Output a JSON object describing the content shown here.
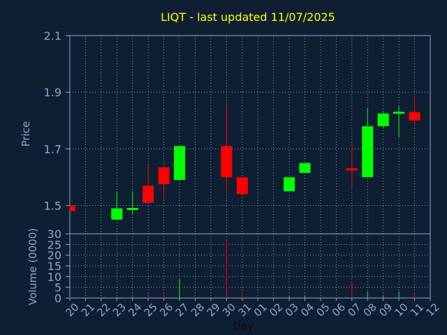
{
  "chart_data": [
    {
      "type": "candlestick",
      "title": "LIQT - last updated 11/07/2025",
      "ylabel": "Price",
      "ylim": [
        1.4,
        2.1
      ],
      "yticks": [
        1.5,
        1.7,
        1.9,
        2.1
      ],
      "ytick_labels": [
        "1.5",
        "1.7",
        "1.9",
        "2.1"
      ],
      "grid": true,
      "colors": {
        "up": "#00ff00",
        "down": "#ff0000",
        "background": "#0f1f33",
        "axis": "#8fa8c8",
        "title": "#ffff00"
      },
      "candles": [
        {
          "x": "20",
          "open": 1.5,
          "high": 1.5,
          "low": 1.48,
          "close": 1.48
        },
        {
          "x": "23",
          "open": 1.45,
          "high": 1.55,
          "low": 1.45,
          "close": 1.49
        },
        {
          "x": "24",
          "open": 1.485,
          "high": 1.55,
          "low": 1.47,
          "close": 1.49
        },
        {
          "x": "25",
          "open": 1.57,
          "high": 1.65,
          "low": 1.51,
          "close": 1.51
        },
        {
          "x": "26",
          "open": 1.635,
          "high": 1.635,
          "low": 1.52,
          "close": 1.575
        },
        {
          "x": "27",
          "open": 1.59,
          "high": 1.71,
          "low": 1.59,
          "close": 1.71
        },
        {
          "x": "30",
          "open": 1.71,
          "high": 1.865,
          "low": 1.55,
          "close": 1.6
        },
        {
          "x": "31",
          "open": 1.6,
          "high": 1.6,
          "low": 1.535,
          "close": 1.54
        },
        {
          "x": "03",
          "open": 1.55,
          "high": 1.6,
          "low": 1.55,
          "close": 1.6
        },
        {
          "x": "04",
          "open": 1.615,
          "high": 1.65,
          "low": 1.615,
          "close": 1.65
        },
        {
          "x": "07",
          "open": 1.63,
          "high": 1.72,
          "low": 1.56,
          "close": 1.625
        },
        {
          "x": "08",
          "open": 1.6,
          "high": 1.845,
          "low": 1.6,
          "close": 1.78
        },
        {
          "x": "09",
          "open": 1.78,
          "high": 1.83,
          "low": 1.775,
          "close": 1.825
        },
        {
          "x": "10",
          "open": 1.825,
          "high": 1.85,
          "low": 1.74,
          "close": 1.83
        },
        {
          "x": "11",
          "open": 1.83,
          "high": 1.885,
          "low": 1.78,
          "close": 1.8
        }
      ]
    },
    {
      "type": "bar",
      "ylabel": "Volume (0000)",
      "xlabel": "Day",
      "ylim": [
        0,
        30
      ],
      "yticks": [
        0,
        5,
        10,
        15,
        20,
        25,
        30
      ],
      "ytick_labels": [
        "0",
        "5",
        "10",
        "15",
        "20",
        "25",
        "30"
      ],
      "categories": [
        "20",
        "21",
        "22",
        "23",
        "24",
        "25",
        "26",
        "27",
        "28",
        "29",
        "30",
        "31",
        "01",
        "02",
        "03",
        "04",
        "05",
        "06",
        "07",
        "08",
        "09",
        "10",
        "11",
        "12"
      ],
      "bars": [
        {
          "x": "20",
          "value": 0.5,
          "direction": "down"
        },
        {
          "x": "23",
          "value": 0.5,
          "direction": "up"
        },
        {
          "x": "24",
          "value": 0.5,
          "direction": "up"
        },
        {
          "x": "25",
          "value": 2,
          "direction": "down"
        },
        {
          "x": "26",
          "value": 2,
          "direction": "down"
        },
        {
          "x": "27",
          "value": 9,
          "direction": "up"
        },
        {
          "x": "30",
          "value": 27,
          "direction": "down"
        },
        {
          "x": "31",
          "value": 2,
          "direction": "down"
        },
        {
          "x": "03",
          "value": 1,
          "direction": "up"
        },
        {
          "x": "04",
          "value": 1,
          "direction": "up"
        },
        {
          "x": "07",
          "value": 7,
          "direction": "down"
        },
        {
          "x": "08",
          "value": 3,
          "direction": "up"
        },
        {
          "x": "09",
          "value": 1,
          "direction": "up"
        },
        {
          "x": "10",
          "value": 3,
          "direction": "up"
        },
        {
          "x": "11",
          "value": 2,
          "direction": "down"
        }
      ]
    }
  ]
}
